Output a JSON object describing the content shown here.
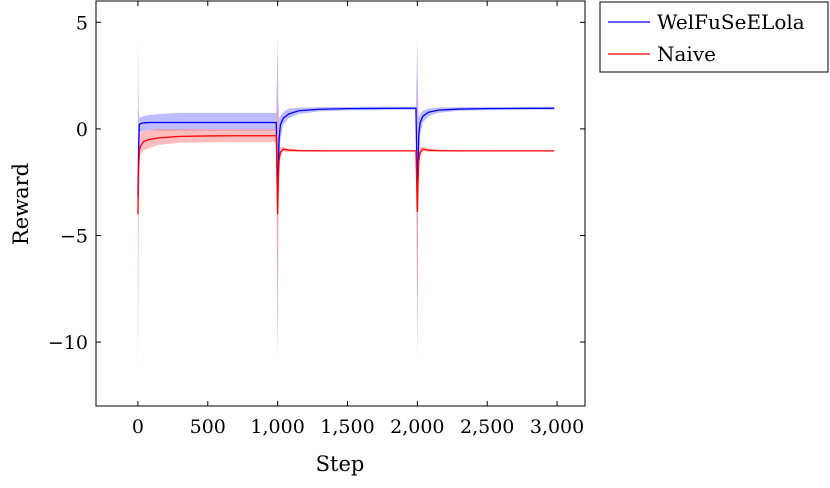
{
  "chart_data": {
    "type": "line",
    "xlabel": "Step",
    "ylabel": "Reward",
    "xlim": [
      -300,
      3200
    ],
    "ylim": [
      -13,
      6
    ],
    "xticks": [
      0,
      500,
      1000,
      1500,
      2000,
      2500,
      3000
    ],
    "xtick_labels": [
      "0",
      "500",
      "1,000",
      "1,500",
      "2,000",
      "2,500",
      "3,000"
    ],
    "yticks": [
      -10,
      -5,
      0,
      5
    ],
    "ytick_labels": [
      "−10",
      "−5",
      "0",
      "5"
    ],
    "grid": false,
    "legend_position": "outside-top-right",
    "series": [
      {
        "name": "WelFuSeELola",
        "color": "#0000ff",
        "band_color": "#9999ff",
        "x": [
          0,
          5,
          10,
          20,
          40,
          80,
          150,
          300,
          500,
          700,
          900,
          990,
          1000,
          1005,
          1010,
          1020,
          1040,
          1080,
          1150,
          1300,
          1500,
          1700,
          1900,
          1990,
          2000,
          2005,
          2010,
          2020,
          2040,
          2080,
          2150,
          2300,
          2500,
          2700,
          2980
        ],
        "y": [
          -3.2,
          -1.0,
          0.2,
          0.25,
          0.28,
          0.3,
          0.3,
          0.3,
          0.3,
          0.3,
          0.3,
          0.3,
          -3.2,
          -2.0,
          -0.5,
          0.2,
          0.5,
          0.7,
          0.85,
          0.92,
          0.95,
          0.96,
          0.97,
          0.97,
          -3.2,
          -2.0,
          -0.3,
          0.3,
          0.6,
          0.78,
          0.88,
          0.93,
          0.95,
          0.96,
          0.97
        ],
        "upper": [
          4.4,
          1.0,
          0.5,
          0.55,
          0.6,
          0.65,
          0.7,
          0.75,
          0.75,
          0.75,
          0.75,
          0.75,
          4.3,
          1.5,
          0.5,
          0.6,
          0.8,
          0.95,
          1.0,
          1.02,
          1.03,
          1.04,
          1.04,
          1.04,
          4.2,
          1.5,
          0.5,
          0.7,
          0.85,
          0.95,
          1.0,
          1.02,
          1.03,
          1.03,
          1.04
        ],
        "lower": [
          -11.5,
          -3.0,
          -0.2,
          -0.15,
          -0.1,
          -0.05,
          -0.1,
          -0.1,
          -0.1,
          -0.1,
          -0.1,
          -0.1,
          -11.0,
          -4.0,
          -1.5,
          -0.5,
          0.2,
          0.5,
          0.7,
          0.82,
          0.87,
          0.88,
          0.9,
          0.9,
          -11.0,
          -4.0,
          -1.2,
          -0.3,
          0.3,
          0.6,
          0.75,
          0.85,
          0.88,
          0.9,
          0.9
        ]
      },
      {
        "name": "Naive",
        "color": "#ff0000",
        "band_color": "#ff9999",
        "x": [
          0,
          5,
          10,
          20,
          40,
          80,
          150,
          300,
          500,
          700,
          900,
          990,
          1000,
          1005,
          1010,
          1020,
          1040,
          1080,
          1150,
          1300,
          1500,
          1700,
          1900,
          1990,
          2000,
          2005,
          2010,
          2020,
          2040,
          2080,
          2150,
          2300,
          2500,
          2700,
          2980
        ],
        "y": [
          -4.0,
          -2.0,
          -1.0,
          -0.8,
          -0.6,
          -0.5,
          -0.42,
          -0.35,
          -0.33,
          -0.32,
          -0.32,
          -0.32,
          -4.0,
          -2.5,
          -1.5,
          -1.1,
          -0.95,
          -1.0,
          -1.02,
          -1.03,
          -1.03,
          -1.03,
          -1.03,
          -1.03,
          -3.9,
          -2.5,
          -1.5,
          -1.1,
          -0.95,
          -1.0,
          -1.02,
          -1.03,
          -1.03,
          -1.03,
          -1.03
        ],
        "upper": [
          2.5,
          -0.5,
          -0.3,
          -0.2,
          -0.1,
          -0.05,
          0.0,
          0.0,
          0.0,
          0.0,
          0.0,
          0.0,
          2.5,
          -0.5,
          -0.9,
          -0.85,
          -0.85,
          -0.92,
          -0.97,
          -0.99,
          -1.0,
          -1.0,
          -1.0,
          -1.0,
          2.5,
          -0.5,
          -0.9,
          -0.85,
          -0.85,
          -0.92,
          -0.97,
          -0.99,
          -1.0,
          -1.0,
          -1.0
        ],
        "lower": [
          -10.5,
          -3.5,
          -1.5,
          -1.2,
          -1.0,
          -0.9,
          -0.75,
          -0.65,
          -0.63,
          -0.62,
          -0.62,
          -0.62,
          -10.5,
          -4.5,
          -2.0,
          -1.3,
          -1.05,
          -1.08,
          -1.07,
          -1.06,
          -1.06,
          -1.06,
          -1.06,
          -1.06,
          -10.5,
          -4.5,
          -2.0,
          -1.3,
          -1.05,
          -1.08,
          -1.07,
          -1.06,
          -1.06,
          -1.06,
          -1.06
        ]
      }
    ]
  }
}
